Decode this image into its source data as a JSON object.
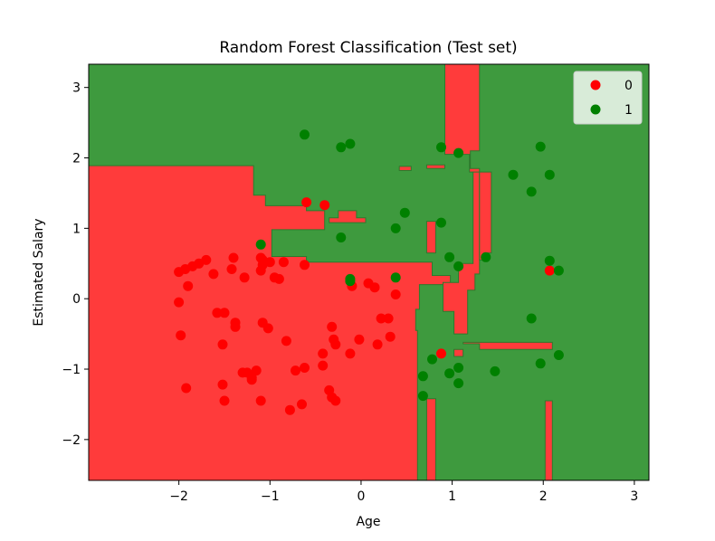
{
  "chart_data": {
    "type": "scatter",
    "title": "Random Forest Classification (Test set)",
    "xlabel": "Age",
    "ylabel": "Estimated Salary",
    "xlim": [
      -2.99,
      3.16
    ],
    "ylim": [
      -2.58,
      3.33
    ],
    "xticks": [
      -2,
      -1,
      0,
      1,
      2,
      3
    ],
    "xtick_labels": [
      "−2",
      "−1",
      "0",
      "1",
      "2",
      "3"
    ],
    "yticks": [
      -2,
      -1,
      0,
      1,
      2,
      3
    ],
    "ytick_labels": [
      "−2",
      "−1",
      "0",
      "1",
      "2",
      "3"
    ],
    "grid": false,
    "legend_position": "top-right",
    "background": "decision regions (red = class 0, green = class 1)",
    "colors": {
      "region_0": "#ff3b3b",
      "region_1": "#3e9a3e",
      "region_edge": "#2d7a2d",
      "point_0": "#ff0000",
      "point_1": "#008000"
    },
    "region_0_polygons": [
      [
        [
          -2.99,
          1.89
        ],
        [
          -1.18,
          1.89
        ],
        [
          -1.18,
          1.47
        ],
        [
          -1.05,
          1.47
        ],
        [
          -1.05,
          1.32
        ],
        [
          -0.6,
          1.32
        ],
        [
          -0.6,
          1.25
        ],
        [
          -0.4,
          1.25
        ],
        [
          -0.4,
          0.98
        ],
        [
          -0.98,
          0.98
        ],
        [
          -0.98,
          0.6
        ],
        [
          -0.6,
          0.6
        ],
        [
          -0.6,
          0.52
        ],
        [
          0.78,
          0.52
        ],
        [
          0.78,
          0.33
        ],
        [
          0.98,
          0.33
        ],
        [
          0.98,
          0.2
        ],
        [
          0.64,
          0.2
        ],
        [
          0.64,
          -0.15
        ],
        [
          0.6,
          -0.15
        ],
        [
          0.6,
          -0.45
        ],
        [
          0.62,
          -0.45
        ],
        [
          0.62,
          -2.58
        ],
        [
          -2.99,
          -2.58
        ]
      ],
      [
        [
          0.92,
          3.33
        ],
        [
          1.3,
          3.33
        ],
        [
          1.3,
          2.1
        ],
        [
          1.2,
          2.1
        ],
        [
          1.2,
          1.85
        ],
        [
          1.3,
          1.85
        ],
        [
          1.3,
          0.35
        ],
        [
          1.25,
          0.35
        ],
        [
          1.25,
          0.12
        ],
        [
          1.17,
          0.12
        ],
        [
          1.17,
          -0.5
        ],
        [
          1.02,
          -0.5
        ],
        [
          1.02,
          -0.18
        ],
        [
          0.9,
          -0.18
        ],
        [
          0.9,
          0.23
        ],
        [
          1.07,
          0.23
        ],
        [
          1.07,
          0.5
        ],
        [
          1.23,
          0.5
        ],
        [
          1.23,
          1.8
        ],
        [
          1.19,
          1.8
        ],
        [
          1.19,
          2.05
        ],
        [
          0.92,
          2.05
        ]
      ],
      [
        [
          -0.05,
          1.25
        ],
        [
          -0.05,
          1.15
        ],
        [
          0.05,
          1.15
        ],
        [
          0.05,
          1.08
        ],
        [
          -0.35,
          1.08
        ],
        [
          -0.35,
          1.15
        ],
        [
          -0.25,
          1.15
        ],
        [
          -0.25,
          1.25
        ]
      ],
      [
        [
          1.23,
          1.8
        ],
        [
          1.43,
          1.8
        ],
        [
          1.43,
          0.65
        ],
        [
          1.38,
          0.65
        ],
        [
          1.38,
          0.55
        ],
        [
          1.3,
          0.55
        ],
        [
          1.3,
          1.8
        ]
      ],
      [
        [
          0.72,
          1.1
        ],
        [
          0.82,
          1.1
        ],
        [
          0.82,
          0.65
        ],
        [
          0.72,
          0.65
        ]
      ],
      [
        [
          0.42,
          1.88
        ],
        [
          0.55,
          1.88
        ],
        [
          0.55,
          1.82
        ],
        [
          0.42,
          1.82
        ]
      ],
      [
        [
          0.72,
          1.9
        ],
        [
          0.92,
          1.9
        ],
        [
          0.92,
          1.85
        ],
        [
          0.72,
          1.85
        ]
      ],
      [
        [
          1.12,
          -0.62
        ],
        [
          2.1,
          -0.62
        ],
        [
          2.1,
          -0.72
        ],
        [
          1.3,
          -0.72
        ],
        [
          1.3,
          -0.64
        ],
        [
          1.12,
          -0.64
        ]
      ],
      [
        [
          1.02,
          -0.72
        ],
        [
          1.12,
          -0.72
        ],
        [
          1.12,
          -0.82
        ],
        [
          1.02,
          -0.82
        ]
      ],
      [
        [
          0.72,
          -1.42
        ],
        [
          0.82,
          -1.42
        ],
        [
          0.82,
          -2.58
        ],
        [
          0.72,
          -2.58
        ]
      ],
      [
        [
          2.02,
          -1.45
        ],
        [
          2.1,
          -1.45
        ],
        [
          2.1,
          -2.58
        ],
        [
          2.02,
          -2.58
        ]
      ]
    ],
    "series": [
      {
        "name": "0",
        "x": [
          -2.0,
          -2.0,
          -1.98,
          -1.93,
          -1.9,
          -1.85,
          -1.78,
          -1.7,
          -1.62,
          -1.58,
          -1.52,
          -1.5,
          -1.42,
          -1.4,
          -1.38,
          -1.38,
          -1.3,
          -1.28,
          -1.2,
          -1.15,
          -1.1,
          -1.1,
          -1.08,
          -1.08,
          -1.02,
          -1.0,
          -0.95,
          -0.9,
          -0.85,
          -0.82,
          -0.78,
          -0.72,
          -0.65,
          -0.62,
          -0.6,
          -0.42,
          -0.4,
          -0.35,
          -0.32,
          -0.32,
          -0.3,
          -0.28,
          -0.28,
          -0.12,
          -0.1,
          -0.02,
          0.08,
          0.15,
          0.18,
          0.22,
          0.3,
          0.32,
          0.38,
          0.88,
          -1.52,
          -1.5,
          -1.25,
          -1.2,
          -1.1,
          -1.92,
          -1.08,
          -0.62,
          -0.42,
          2.07
        ],
        "y": [
          0.38,
          -0.05,
          -0.52,
          0.42,
          0.18,
          0.46,
          0.5,
          0.55,
          0.35,
          -0.2,
          -0.65,
          -0.2,
          0.42,
          0.58,
          -0.34,
          -0.4,
          -1.05,
          0.3,
          -1.12,
          -1.02,
          0.4,
          0.58,
          -0.34,
          0.48,
          -0.42,
          0.52,
          0.3,
          0.28,
          0.52,
          -0.6,
          -1.58,
          -1.02,
          -1.5,
          0.48,
          1.37,
          -0.78,
          1.33,
          -1.3,
          -0.4,
          -1.4,
          -0.58,
          -1.45,
          -0.65,
          -0.78,
          0.18,
          -0.58,
          0.22,
          0.16,
          -0.65,
          -0.28,
          -0.28,
          -0.54,
          0.06,
          -0.78,
          -1.22,
          -1.45,
          -1.05,
          -1.15,
          -1.45,
          -1.27,
          0.55,
          -0.98,
          -0.95,
          0.4
        ]
      },
      {
        "name": "1",
        "x": [
          -0.62,
          -0.22,
          -0.12,
          -0.22,
          -0.12,
          -1.1,
          -0.12,
          0.38,
          0.38,
          0.48,
          0.88,
          0.88,
          0.97,
          1.07,
          1.07,
          1.37,
          1.67,
          1.87,
          1.97,
          2.07,
          2.07,
          2.17,
          2.17,
          1.87,
          1.97,
          0.68,
          0.78,
          0.97,
          1.07,
          1.07,
          1.47,
          0.68
        ],
        "y": [
          2.33,
          2.15,
          2.2,
          0.87,
          0.28,
          0.77,
          0.25,
          1.0,
          0.3,
          1.22,
          2.15,
          1.08,
          0.59,
          2.07,
          0.46,
          0.59,
          1.76,
          1.52,
          2.16,
          1.76,
          0.54,
          0.4,
          -0.8,
          -0.28,
          -0.92,
          -1.1,
          -0.86,
          -1.06,
          -0.98,
          -1.2,
          -1.03,
          -1.38
        ]
      }
    ]
  }
}
